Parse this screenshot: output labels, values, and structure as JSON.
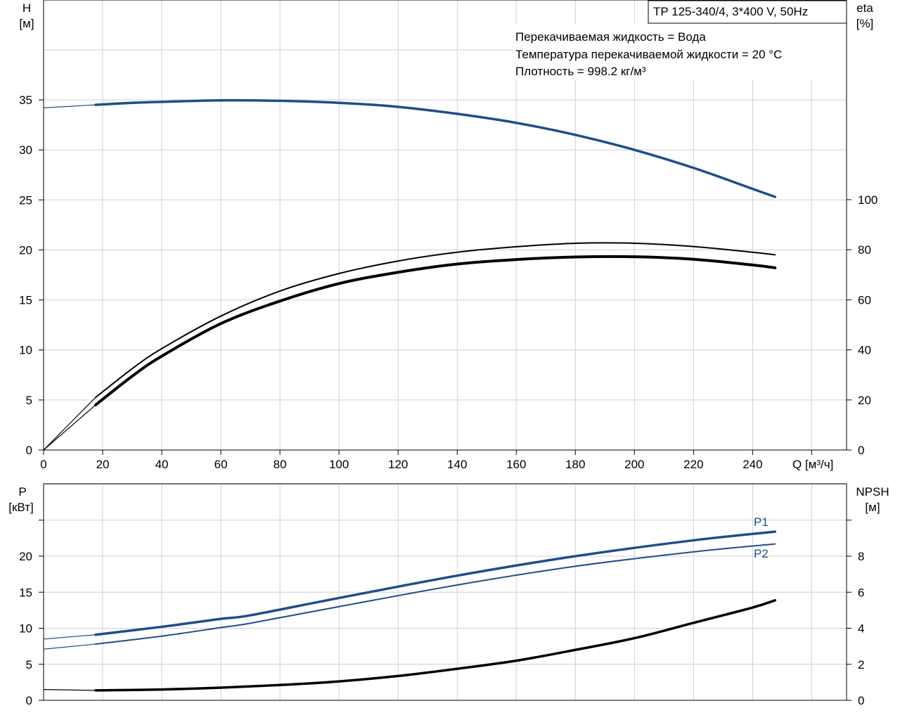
{
  "chart_data": [
    {
      "type": "line",
      "title": "TP 125-340/4, 3*400 V, 50Hz",
      "annotations": [
        "Перекачиваемая жидкость = Вода",
        "Температура перекачиваемой жидкости = 20 °C",
        "Плотность = 998.2 кг/м³"
      ],
      "xlabel": "Q [м³/ч]",
      "ylabel": [
        "H",
        "[м]"
      ],
      "y2label": [
        "eta",
        "[%]"
      ],
      "xlim": [
        0,
        270
      ],
      "ylim": [
        0,
        42.5
      ],
      "y2lim": [
        0,
        170
      ],
      "grid": true,
      "xticks": [
        "0",
        "20",
        "40",
        "60",
        "80",
        "100",
        "120",
        "140",
        "160",
        "180",
        "200",
        "220",
        "240"
      ],
      "yticks": [
        "0",
        "5",
        "10",
        "15",
        "20",
        "25",
        "30",
        "35"
      ],
      "y2ticks": [
        "0",
        "20",
        "40",
        "60",
        "80",
        "100"
      ],
      "series": [
        {
          "axis": "left",
          "color": "#1f4e89",
          "width": 3.5,
          "extension": {
            "x": [
              0,
              17.6
            ],
            "y": [
              34.2,
              34.5
            ]
          },
          "x": [
            17.6,
            30,
            40,
            60,
            80,
            100,
            120,
            140,
            160,
            180,
            200,
            220,
            240,
            247.6
          ],
          "y": [
            34.5,
            34.7,
            34.8,
            34.95,
            34.9,
            34.7,
            34.3,
            33.6,
            32.7,
            31.5,
            30.0,
            28.2,
            26.1,
            25.3
          ]
        },
        {
          "axis": "right",
          "color": "#000000",
          "width": 2,
          "extension": {
            "x": [
              0,
              17.6
            ],
            "y": [
              0,
              21
            ]
          },
          "x": [
            17.6,
            30,
            40,
            60,
            80,
            100,
            120,
            140,
            160,
            180,
            200,
            220,
            240,
            247.6
          ],
          "y": [
            21,
            32.5,
            40.5,
            53.5,
            63.5,
            70.5,
            75.5,
            79,
            81.2,
            82.6,
            82.6,
            81.3,
            79,
            78
          ]
        },
        {
          "axis": "right",
          "color": "#000000",
          "width": 4,
          "extension": {
            "x": [
              0,
              17.6
            ],
            "y": [
              0,
              18
            ]
          },
          "x": [
            17.6,
            30,
            40,
            60,
            80,
            100,
            120,
            140,
            160,
            180,
            200,
            220,
            240,
            247.6
          ],
          "y": [
            18,
            29.5,
            37.5,
            50.5,
            59.5,
            66.5,
            71,
            74.3,
            76.1,
            77.1,
            77.2,
            76.2,
            73.9,
            72.8
          ]
        }
      ]
    },
    {
      "type": "line",
      "xlabel": "",
      "ylabel": [
        "P",
        "[кВт]"
      ],
      "y2label": [
        "NPSH",
        "[м]"
      ],
      "xlim": [
        0,
        270
      ],
      "ylim": [
        0,
        25
      ],
      "y2lim": [
        0,
        10
      ],
      "grid": true,
      "yticks": [
        "0",
        "5",
        "10",
        "15",
        "20"
      ],
      "y2ticks": [
        "0",
        "2",
        "4",
        "6",
        "8"
      ],
      "series": [
        {
          "name": "P1",
          "axis": "left",
          "color": "#1f4e89",
          "width": 3.5,
          "extension": {
            "x": [
              0,
              17.6
            ],
            "y": [
              8.5,
              9.1
            ]
          },
          "x": [
            17.6,
            40,
            60,
            70,
            100,
            140,
            180,
            220,
            247.6
          ],
          "y": [
            9.1,
            10.2,
            11.3,
            11.8,
            14.2,
            17.3,
            20.0,
            22.2,
            23.4
          ]
        },
        {
          "name": "P2",
          "axis": "left",
          "color": "#1f4e89",
          "width": 2,
          "extension": {
            "x": [
              0,
              17.6
            ],
            "y": [
              7.1,
              7.8
            ]
          },
          "x": [
            17.6,
            40,
            60,
            70,
            100,
            140,
            180,
            220,
            247.6
          ],
          "y": [
            7.8,
            8.9,
            10.1,
            10.7,
            13.0,
            16.0,
            18.6,
            20.6,
            21.7
          ]
        },
        {
          "axis": "right",
          "color": "#000000",
          "width": 3.5,
          "extension": {
            "x": [
              0,
              17.6
            ],
            "y": [
              0.6,
              0.55
            ]
          },
          "x": [
            17.6,
            40,
            60,
            80,
            100,
            120,
            140,
            160,
            180,
            200,
            220,
            240,
            247.6
          ],
          "y": [
            0.55,
            0.6,
            0.7,
            0.85,
            1.05,
            1.35,
            1.75,
            2.2,
            2.8,
            3.45,
            4.3,
            5.15,
            5.55
          ]
        }
      ]
    }
  ]
}
